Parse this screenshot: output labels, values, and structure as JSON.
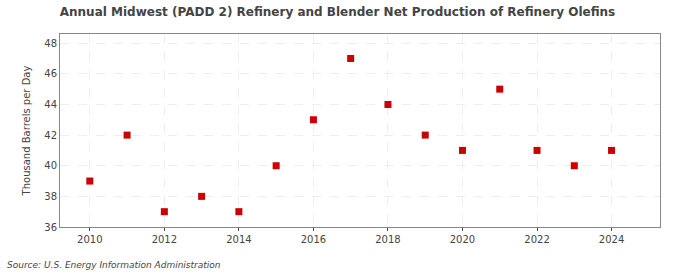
{
  "chart_data": {
    "type": "scatter",
    "title": "Annual Midwest (PADD 2) Refinery and Blender Net Production of Refinery Olefins",
    "ylabel": "Thousand Barrels per Day",
    "source": "Source: U.S. Energy Information Administration",
    "x": [
      2010,
      2011,
      2012,
      2013,
      2014,
      2015,
      2016,
      2017,
      2018,
      2019,
      2020,
      2021,
      2022,
      2023,
      2024
    ],
    "values": [
      39,
      42,
      37,
      38,
      37,
      40,
      43,
      47,
      44,
      42,
      41,
      45,
      41,
      40,
      41
    ],
    "color": "#cc0000",
    "marker": "square",
    "xlim": [
      2009.2,
      2025.3
    ],
    "xticks": [
      2010,
      2012,
      2014,
      2016,
      2018,
      2020,
      2022,
      2024
    ],
    "ylim": [
      36,
      48.6
    ],
    "yticks": [
      36,
      38,
      40,
      42,
      44,
      46,
      48
    ],
    "grid": true
  }
}
